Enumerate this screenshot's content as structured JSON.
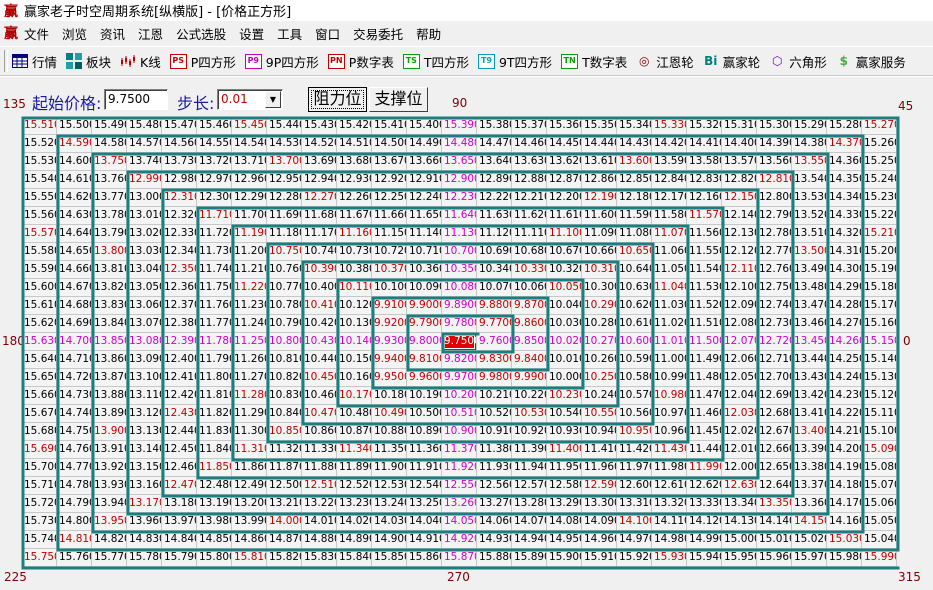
{
  "window": {
    "title": "赢家老子时空周期系统[纵横版] - [价格正方形]",
    "logo": "赢"
  },
  "menu": {
    "logo": "赢",
    "items": [
      "文件",
      "浏览",
      "资讯",
      "江恩",
      "公式选股",
      "设置",
      "工具",
      "窗口",
      "交易委托",
      "帮助"
    ]
  },
  "toolbar": {
    "items": [
      {
        "label": "行情",
        "icon": "quote-table-icon",
        "badge": "",
        "color": "#000080"
      },
      {
        "label": "板块",
        "icon": "sector-blocks-icon",
        "badge": "",
        "color": "#008080"
      },
      {
        "label": "K线",
        "icon": "candlestick-icon",
        "badge": "",
        "color": "#c00000"
      },
      {
        "label": "P四方形",
        "icon": "ps-icon",
        "badge": "PS",
        "color": "#c00000"
      },
      {
        "label": "9P四方形",
        "icon": "p9-icon",
        "badge": "P9",
        "color": "#c000c0"
      },
      {
        "label": "P数字表",
        "icon": "pn-icon",
        "badge": "PN",
        "color": "#c00000"
      },
      {
        "label": "T四方形",
        "icon": "ts-icon",
        "badge": "TS",
        "color": "#00a000"
      },
      {
        "label": "9T四方形",
        "icon": "t9-icon",
        "badge": "T9",
        "color": "#00a0c0"
      },
      {
        "label": "T数字表",
        "icon": "tn-icon",
        "badge": "TN",
        "color": "#00a000"
      },
      {
        "label": "江恩轮",
        "icon": "gann-wheel-icon",
        "badge": "◎",
        "color": "#800000"
      },
      {
        "label": "赢家轮",
        "icon": "winner-wheel-icon",
        "badge": "Bi",
        "color": "#008080"
      },
      {
        "label": "六角形",
        "icon": "hexagon-icon",
        "badge": "⬡",
        "color": "#8000c0"
      },
      {
        "label": "赢家服务",
        "icon": "dollar-icon",
        "badge": "$",
        "color": "#40b040"
      }
    ]
  },
  "controls": {
    "start_price_label": "起始价格:",
    "start_price_value": "9.7500",
    "step_label": "步长:",
    "step_value": "0.01",
    "resistance_button": "阻力位",
    "support_button": "支撑位"
  },
  "angles": {
    "a135": "135",
    "a90": "90",
    "a45": "45",
    "a180": "180",
    "a0": "0",
    "a225": "225",
    "a270": "270",
    "a315": "315"
  },
  "grid": {
    "start_price": 9.75,
    "step": 0.01,
    "size": 25,
    "decimals": 4,
    "colors": {
      "diagonal_and_division": "#c00000",
      "cardinal": "#cc00cc",
      "center_bg": "#e00000",
      "wall": "#1b7f80"
    }
  }
}
